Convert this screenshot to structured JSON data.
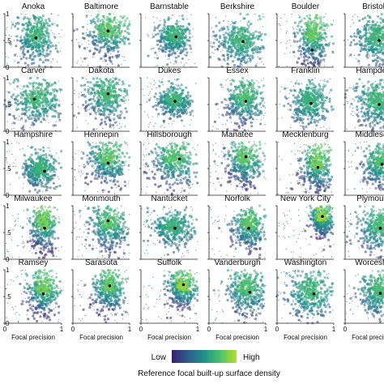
{
  "chart_data": {
    "type": "scatter",
    "description_style": "small-multiples density scatter",
    "xlabel": "Focal precision",
    "ylabel": "",
    "x_ticks": [
      "0",
      "1"
    ],
    "y_ticks": [
      "0",
      ".5",
      "1"
    ],
    "xlim": [
      0,
      1
    ],
    "ylim": [
      0,
      1
    ],
    "colorbar": {
      "low_label": "Low",
      "high_label": "High",
      "title": "Reference focal built-up surface density",
      "colors": [
        "#3b1f6e",
        "#2f5d8c",
        "#20918b",
        "#4cc26a",
        "#b8de29"
      ]
    },
    "panels": [
      {
        "name": "Anoka",
        "cx": 0.55,
        "cy": 0.55,
        "sx": 0.16,
        "sy": 0.22,
        "hot": 0.25,
        "marker": [
          0.55,
          0.55
        ]
      },
      {
        "name": "Baltimore",
        "cx": 0.62,
        "cy": 0.6,
        "sx": 0.2,
        "sy": 0.24,
        "hot": 0.55,
        "marker": [
          0.62,
          0.68
        ]
      },
      {
        "name": "Barnstable",
        "cx": 0.58,
        "cy": 0.55,
        "sx": 0.14,
        "sy": 0.16,
        "hot": 0.3,
        "marker": [
          0.62,
          0.57
        ]
      },
      {
        "name": "Berkshire",
        "cx": 0.55,
        "cy": 0.45,
        "sx": 0.2,
        "sy": 0.2,
        "hot": 0.25,
        "marker": [
          0.6,
          0.48
        ]
      },
      {
        "name": "Boulder",
        "cx": 0.62,
        "cy": 0.5,
        "sx": 0.14,
        "sy": 0.26,
        "hot": 0.6,
        "marker": [
          0.62,
          0.32
        ]
      },
      {
        "name": "Bristol",
        "cx": 0.55,
        "cy": 0.5,
        "sx": 0.18,
        "sy": 0.22,
        "hot": 0.25,
        "marker": [
          0.6,
          0.5
        ]
      },
      {
        "name": "Carver",
        "cx": 0.55,
        "cy": 0.55,
        "sx": 0.22,
        "sy": 0.22,
        "hot": 0.3,
        "marker": [
          0.52,
          0.6
        ]
      },
      {
        "name": "Dakota",
        "cx": 0.6,
        "cy": 0.62,
        "sx": 0.18,
        "sy": 0.22,
        "hot": 0.35,
        "marker": [
          0.62,
          0.7
        ]
      },
      {
        "name": "Dukes",
        "cx": 0.58,
        "cy": 0.55,
        "sx": 0.14,
        "sy": 0.14,
        "hot": 0.3,
        "marker": [
          0.6,
          0.56
        ]
      },
      {
        "name": "Essex",
        "cx": 0.62,
        "cy": 0.55,
        "sx": 0.16,
        "sy": 0.2,
        "hot": 0.45,
        "marker": [
          0.65,
          0.56
        ]
      },
      {
        "name": "Franklin",
        "cx": 0.58,
        "cy": 0.52,
        "sx": 0.16,
        "sy": 0.2,
        "hot": 0.2,
        "marker": [
          0.6,
          0.52
        ]
      },
      {
        "name": "Hampden",
        "cx": 0.55,
        "cy": 0.5,
        "sx": 0.18,
        "sy": 0.22,
        "hot": 0.3,
        "marker": [
          0.6,
          0.5
        ]
      },
      {
        "name": "Hampshire",
        "cx": 0.62,
        "cy": 0.45,
        "sx": 0.14,
        "sy": 0.16,
        "hot": 0.25,
        "marker": [
          0.7,
          0.45
        ]
      },
      {
        "name": "Hennepin",
        "cx": 0.62,
        "cy": 0.62,
        "sx": 0.18,
        "sy": 0.22,
        "hot": 0.55,
        "marker": [
          0.62,
          0.6
        ]
      },
      {
        "name": "Hillsborough",
        "cx": 0.58,
        "cy": 0.6,
        "sx": 0.2,
        "sy": 0.22,
        "hot": 0.5,
        "marker": [
          0.68,
          0.68
        ]
      },
      {
        "name": "Manatee",
        "cx": 0.62,
        "cy": 0.62,
        "sx": 0.16,
        "sy": 0.22,
        "hot": 0.55,
        "marker": [
          0.65,
          0.72
        ]
      },
      {
        "name": "Mecklenburg",
        "cx": 0.7,
        "cy": 0.5,
        "sx": 0.14,
        "sy": 0.24,
        "hot": 0.7,
        "marker": [
          0.72,
          0.52
        ]
      },
      {
        "name": "Middlesex",
        "cx": 0.62,
        "cy": 0.55,
        "sx": 0.16,
        "sy": 0.2,
        "hot": 0.45,
        "marker": [
          0.65,
          0.58
        ]
      },
      {
        "name": "Milwaukee",
        "cx": 0.68,
        "cy": 0.58,
        "sx": 0.12,
        "sy": 0.24,
        "hot": 0.75,
        "marker": [
          0.7,
          0.58
        ]
      },
      {
        "name": "Monmouth",
        "cx": 0.62,
        "cy": 0.6,
        "sx": 0.16,
        "sy": 0.22,
        "hot": 0.5,
        "marker": [
          0.62,
          0.72
        ]
      },
      {
        "name": "Nantucket",
        "cx": 0.55,
        "cy": 0.58,
        "sx": 0.18,
        "sy": 0.16,
        "hot": 0.2,
        "marker": [
          0.6,
          0.58
        ]
      },
      {
        "name": "Norfolk",
        "cx": 0.7,
        "cy": 0.58,
        "sx": 0.14,
        "sy": 0.2,
        "hot": 0.55,
        "marker": [
          0.7,
          0.58
        ]
      },
      {
        "name": "New York City",
        "cx": 0.78,
        "cy": 0.72,
        "sx": 0.1,
        "sy": 0.16,
        "hot": 0.9,
        "marker": [
          0.8,
          0.8
        ]
      },
      {
        "name": "Plymouth",
        "cx": 0.6,
        "cy": 0.55,
        "sx": 0.18,
        "sy": 0.22,
        "hot": 0.4,
        "marker": [
          0.62,
          0.58
        ]
      },
      {
        "name": "Ramsey",
        "cx": 0.68,
        "cy": 0.55,
        "sx": 0.14,
        "sy": 0.22,
        "hot": 0.65,
        "marker": [
          0.68,
          0.55
        ]
      },
      {
        "name": "Sarasota",
        "cx": 0.62,
        "cy": 0.62,
        "sx": 0.14,
        "sy": 0.22,
        "hot": 0.6,
        "marker": [
          0.65,
          0.7
        ]
      },
      {
        "name": "Suffolk",
        "cx": 0.72,
        "cy": 0.62,
        "sx": 0.14,
        "sy": 0.18,
        "hot": 0.85,
        "marker": [
          0.75,
          0.72
        ]
      },
      {
        "name": "Vanderburgh",
        "cx": 0.65,
        "cy": 0.58,
        "sx": 0.16,
        "sy": 0.22,
        "hot": 0.45,
        "marker": [
          0.72,
          0.58
        ]
      },
      {
        "name": "Washington",
        "cx": 0.58,
        "cy": 0.52,
        "sx": 0.2,
        "sy": 0.24,
        "hot": 0.3,
        "marker": [
          0.65,
          0.55
        ]
      },
      {
        "name": "Worcester",
        "cx": 0.6,
        "cy": 0.55,
        "sx": 0.18,
        "sy": 0.22,
        "hot": 0.35,
        "marker": [
          0.62,
          0.56
        ]
      }
    ]
  }
}
